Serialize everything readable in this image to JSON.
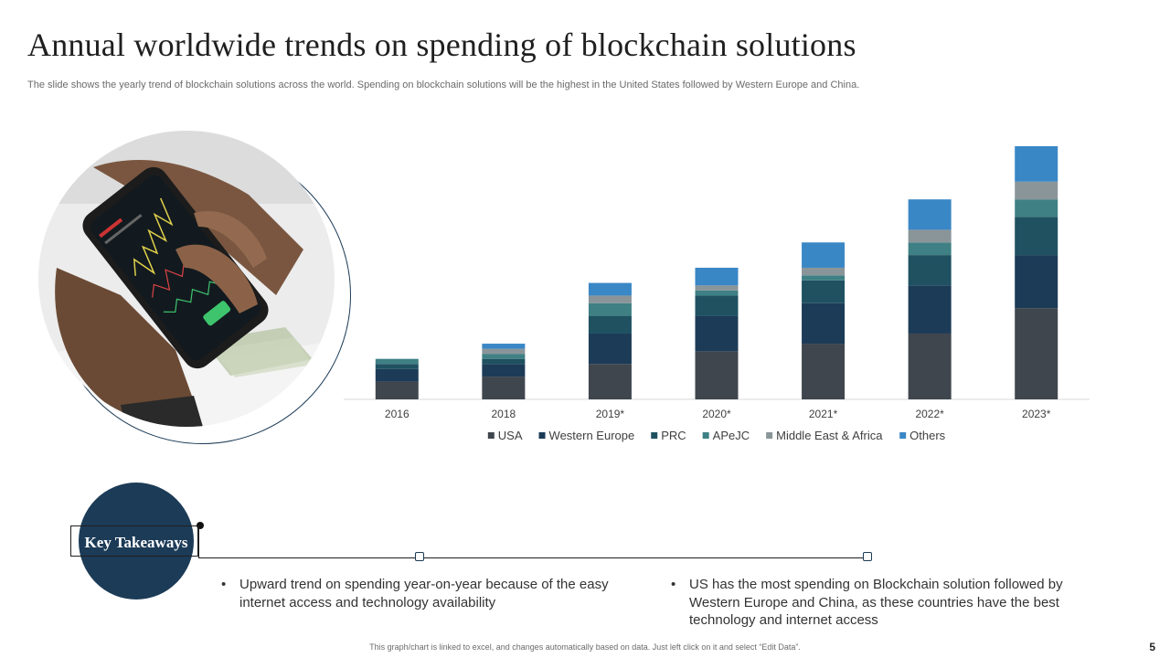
{
  "slide": {
    "title": "Annual worldwide trends on spending of blockchain solutions",
    "subtitle": "The slide shows the yearly trend of blockchain solutions across the world. Spending on blockchain solutions will be the highest in the United States followed by Western Europe and China.",
    "footer_note": "This graph/chart is linked to excel, and changes automatically based on data. Just left click on it and select “Edit Data”.",
    "page_number": "5"
  },
  "key_takeaways": {
    "label": "Key Takeaways",
    "bullet_symbol": "•",
    "points": [
      "Upward trend on spending year-on-year because of the easy internet access and technology availability",
      "US has the most spending on Blockchain solution followed by Western Europe and China, as these countries have the best technology and internet access"
    ]
  },
  "chart_data": {
    "type": "bar",
    "stacked": true,
    "title": "",
    "xlabel": "",
    "ylabel": "",
    "y_axis_visible": false,
    "ylim": [
      0,
      100
    ],
    "categories": [
      "2016",
      "2018",
      "2019*",
      "2020*",
      "2021*",
      "2022*",
      "2023*"
    ],
    "series": [
      {
        "name": "USA",
        "color": "#3f464d",
        "values": [
          7,
          9,
          14,
          19,
          22,
          26,
          36
        ]
      },
      {
        "name": "Western Europe",
        "color": "#1c3b57",
        "values": [
          5,
          5,
          12,
          14,
          16,
          19,
          21
        ]
      },
      {
        "name": "PRC",
        "color": "#1f5161",
        "values": [
          2,
          2,
          7,
          8,
          9,
          12,
          15
        ]
      },
      {
        "name": "APeJC",
        "color": "#3f8084",
        "values": [
          2,
          2,
          5,
          2,
          2,
          5,
          7
        ]
      },
      {
        "name": "Middle East & Africa",
        "color": "#8a9599",
        "values": [
          0,
          2,
          3,
          2,
          3,
          5,
          7
        ]
      },
      {
        "name": "Others",
        "color": "#3a87c6",
        "values": [
          0,
          2,
          5,
          7,
          10,
          12,
          14
        ]
      }
    ],
    "legend_position": "bottom"
  }
}
